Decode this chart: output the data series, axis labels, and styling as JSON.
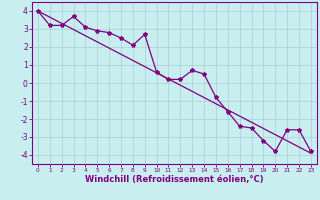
{
  "title": "",
  "xlabel": "Windchill (Refroidissement éolien,°C)",
  "ylabel": "",
  "background_color": "#c8eef0",
  "line_color": "#800080",
  "grid_color": "#a0c8d0",
  "xlim": [
    -0.5,
    23.5
  ],
  "ylim": [
    -4.5,
    4.5
  ],
  "yticks": [
    -4,
    -3,
    -2,
    -1,
    0,
    1,
    2,
    3,
    4
  ],
  "xticks": [
    0,
    1,
    2,
    3,
    4,
    5,
    6,
    7,
    8,
    9,
    10,
    11,
    12,
    13,
    14,
    15,
    16,
    17,
    18,
    19,
    20,
    21,
    22,
    23
  ],
  "series1_x": [
    0,
    1,
    2,
    3,
    4,
    5,
    6,
    7,
    8,
    9,
    10,
    11,
    12,
    13,
    14,
    15,
    16,
    17,
    18,
    19,
    20,
    21,
    22,
    23
  ],
  "series1_y": [
    4.0,
    3.2,
    3.2,
    3.7,
    3.1,
    2.9,
    2.8,
    2.5,
    2.1,
    2.7,
    0.6,
    0.2,
    0.2,
    0.7,
    0.5,
    -0.8,
    -1.6,
    -2.4,
    -2.5,
    -3.2,
    -3.8,
    -2.6,
    -2.6,
    -3.8
  ],
  "series2_x": [
    0,
    23
  ],
  "series2_y": [
    4.0,
    -3.9
  ],
  "marker": "*",
  "markersize": 3,
  "linewidth": 0.9,
  "tick_fontsize": 5,
  "xlabel_fontsize": 6.0
}
